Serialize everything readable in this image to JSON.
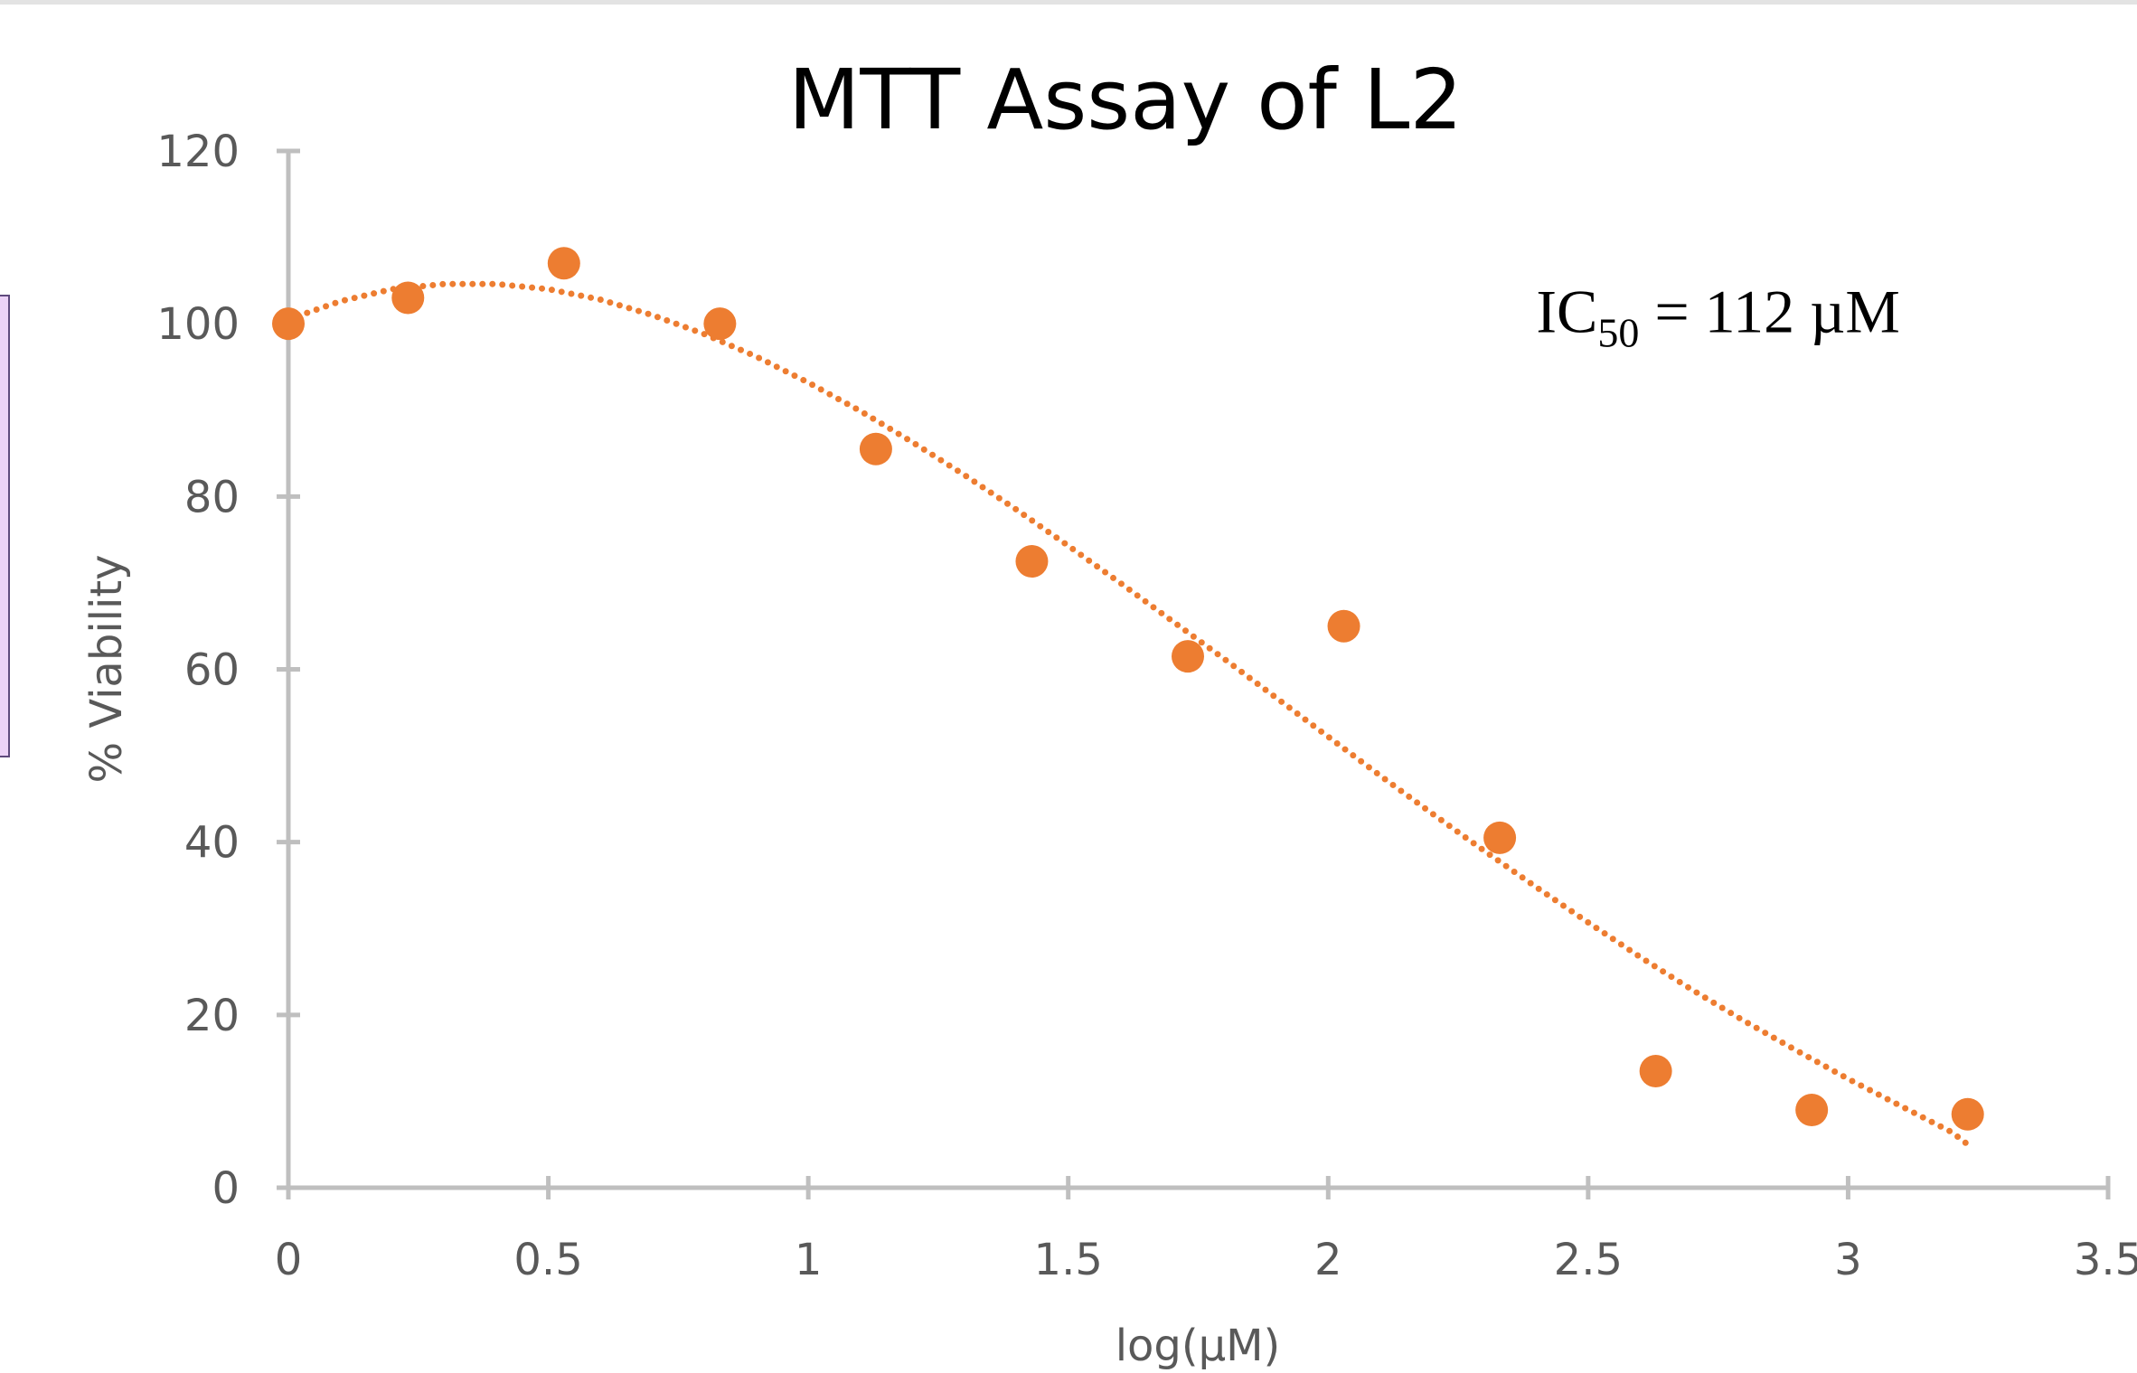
{
  "chart_data": {
    "type": "scatter",
    "title": "MTT Assay of L2",
    "xlabel": "log(µM)",
    "ylabel": "% Viability",
    "xlim": [
      0,
      3.5
    ],
    "ylim": [
      0,
      120
    ],
    "x_ticks": [
      "0",
      "0.5",
      "1",
      "1.5",
      "2",
      "2.5",
      "3",
      "3.5"
    ],
    "y_ticks": [
      "0",
      "20",
      "40",
      "60",
      "80",
      "100",
      "120"
    ],
    "grid": false,
    "legend": "none",
    "series": [
      {
        "color": "#ed7d31",
        "x": [
          0,
          0.23,
          0.53,
          0.83,
          1.13,
          1.43,
          1.73,
          2.03,
          2.33,
          2.63,
          2.93,
          3.23
        ],
        "y": [
          100,
          103,
          107,
          100,
          85.5,
          72.5,
          61.5,
          65,
          40.5,
          13.5,
          9,
          8.5
        ]
      }
    ],
    "trendline": {
      "type": "polynomial",
      "style": "dotted",
      "color": "#ed7d31",
      "x": [
        0,
        0.1,
        0.2,
        0.3,
        0.4,
        0.5,
        0.6,
        0.7,
        0.8,
        0.9,
        1.0,
        1.1,
        1.2,
        1.3,
        1.4,
        1.5,
        1.6,
        1.7,
        1.8,
        1.9,
        2.0,
        2.1,
        2.2,
        2.3,
        2.4,
        2.5,
        2.6,
        2.7,
        2.8,
        2.9,
        3.0,
        3.1,
        3.2,
        3.23
      ],
      "y": [
        100.5,
        102.6,
        104.0,
        104.6,
        104.6,
        104.0,
        102.8,
        101.0,
        98.8,
        96.2,
        93.2,
        89.9,
        86.3,
        82.5,
        78.5,
        74.3,
        70.0,
        65.6,
        61.2,
        56.7,
        52.2,
        47.7,
        43.3,
        39.0,
        34.8,
        30.7,
        26.7,
        22.9,
        19.3,
        15.9,
        12.6,
        9.5,
        6.4,
        5.0
      ]
    },
    "annotation": {
      "main": "IC",
      "sub": "50",
      "rest": " = 112 µM",
      "anchor_x": 2.4,
      "anchor_y": 99
    },
    "colors": {
      "axis": "#bfbfbf",
      "tick_text": "#595959"
    }
  }
}
